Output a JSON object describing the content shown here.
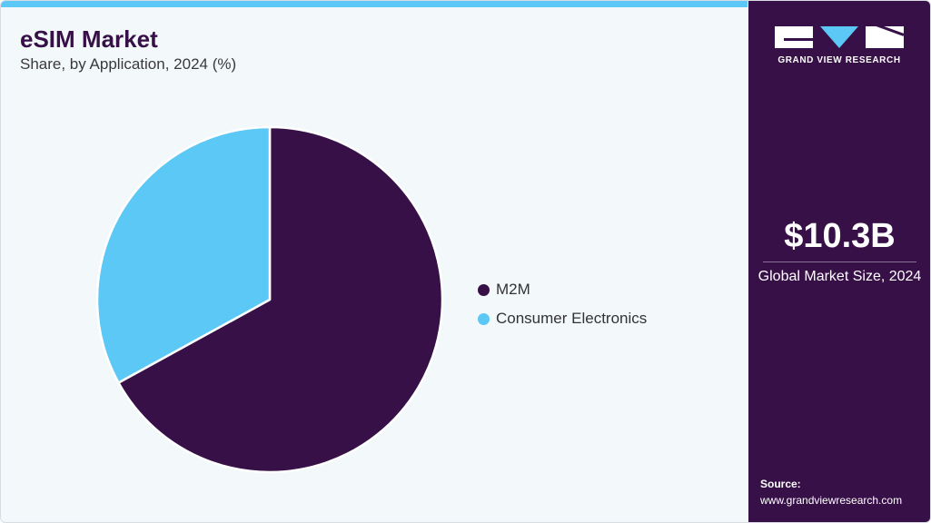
{
  "header": {
    "title": "eSIM Market",
    "subtitle": "Share, by Application, 2024 (%)"
  },
  "chart_data": {
    "type": "pie",
    "categories": [
      "M2M",
      "Consumer Electronics"
    ],
    "values": [
      67,
      33
    ],
    "colors": [
      "#371047",
      "#5bc8f5"
    ],
    "start_angle_deg": 0,
    "direction": "clockwise",
    "legend_position": "right"
  },
  "legend": {
    "items": [
      {
        "label": "M2M",
        "color": "#371047"
      },
      {
        "label": "Consumer Electronics",
        "color": "#5bc8f5"
      }
    ]
  },
  "sidebar": {
    "logo_text": "GRAND VIEW RESEARCH",
    "market_size": "$10.3B",
    "market_size_label": "Global Market Size, 2024",
    "source_label": "Source:",
    "source_url": "www.grandviewresearch.com"
  },
  "colors": {
    "brand_dark": "#371047",
    "brand_accent": "#5bc8f5",
    "panel_background": "#f3f8fb"
  }
}
